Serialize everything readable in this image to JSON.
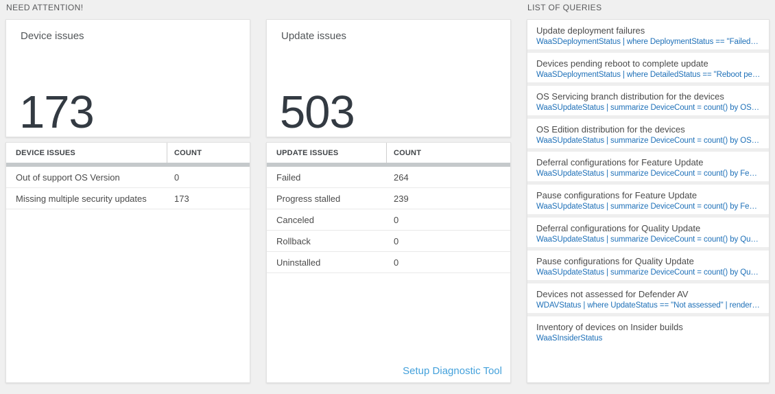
{
  "colors": {
    "page_background": "#f0f0f0",
    "query_link_blue": "#1e70b8",
    "footer_link_blue": "#44a1db",
    "big_number_color": "#333a42",
    "header_bar_gray": "#c5c9cb"
  },
  "need_attention": {
    "header": "NEED ATTENTION!",
    "device_tile": {
      "title": "Device issues",
      "count": "173",
      "table": {
        "columns": [
          "DEVICE ISSUES",
          "COUNT"
        ],
        "rows": [
          {
            "label": "Out of support OS Version",
            "count": "0"
          },
          {
            "label": "Missing multiple security updates",
            "count": "173"
          }
        ]
      }
    },
    "update_tile": {
      "title": "Update issues",
      "count": "503",
      "table": {
        "columns": [
          "UPDATE ISSUES",
          "COUNT"
        ],
        "rows": [
          {
            "label": "Failed",
            "count": "264"
          },
          {
            "label": "Progress stalled",
            "count": "239"
          },
          {
            "label": "Canceled",
            "count": "0"
          },
          {
            "label": "Rollback",
            "count": "0"
          },
          {
            "label": "Uninstalled",
            "count": "0"
          }
        ]
      },
      "footer_link": "Setup Diagnostic Tool"
    }
  },
  "queries_panel": {
    "header": "LIST OF QUERIES",
    "items": [
      {
        "title": "Update deployment failures",
        "query": "WaaSDeploymentStatus | where DeploymentStatus == \"Failed\" |..."
      },
      {
        "title": "Devices pending reboot to complete update",
        "query": "WaaSDeploymentStatus | where DetailedStatus == \"Reboot pend..."
      },
      {
        "title": "OS Servicing branch distribution for the devices",
        "query": "WaaSUpdateStatus | summarize DeviceCount = count() by OSSer..."
      },
      {
        "title": "OS Edition distribution for the devices",
        "query": "WaaSUpdateStatus | summarize DeviceCount = count() by OSEdit..."
      },
      {
        "title": "Deferral configurations for Feature Update",
        "query": "WaaSUpdateStatus | summarize DeviceCount = count() by Featur..."
      },
      {
        "title": "Pause configurations for Feature Update",
        "query": "WaaSUpdateStatus | summarize DeviceCount = count() by Featur..."
      },
      {
        "title": "Deferral configurations for Quality Update",
        "query": "WaaSUpdateStatus | summarize DeviceCount = count() by Qualit..."
      },
      {
        "title": "Pause configurations for Quality Update",
        "query": "WaaSUpdateStatus | summarize DeviceCount = count() by Qualit..."
      },
      {
        "title": "Devices not assessed for Defender AV",
        "query": "WDAVStatus | where UpdateStatus == \"Not assessed\" | render ta..."
      },
      {
        "title": "Inventory of devices on Insider builds",
        "query": "WaaSInsiderStatus"
      }
    ]
  }
}
